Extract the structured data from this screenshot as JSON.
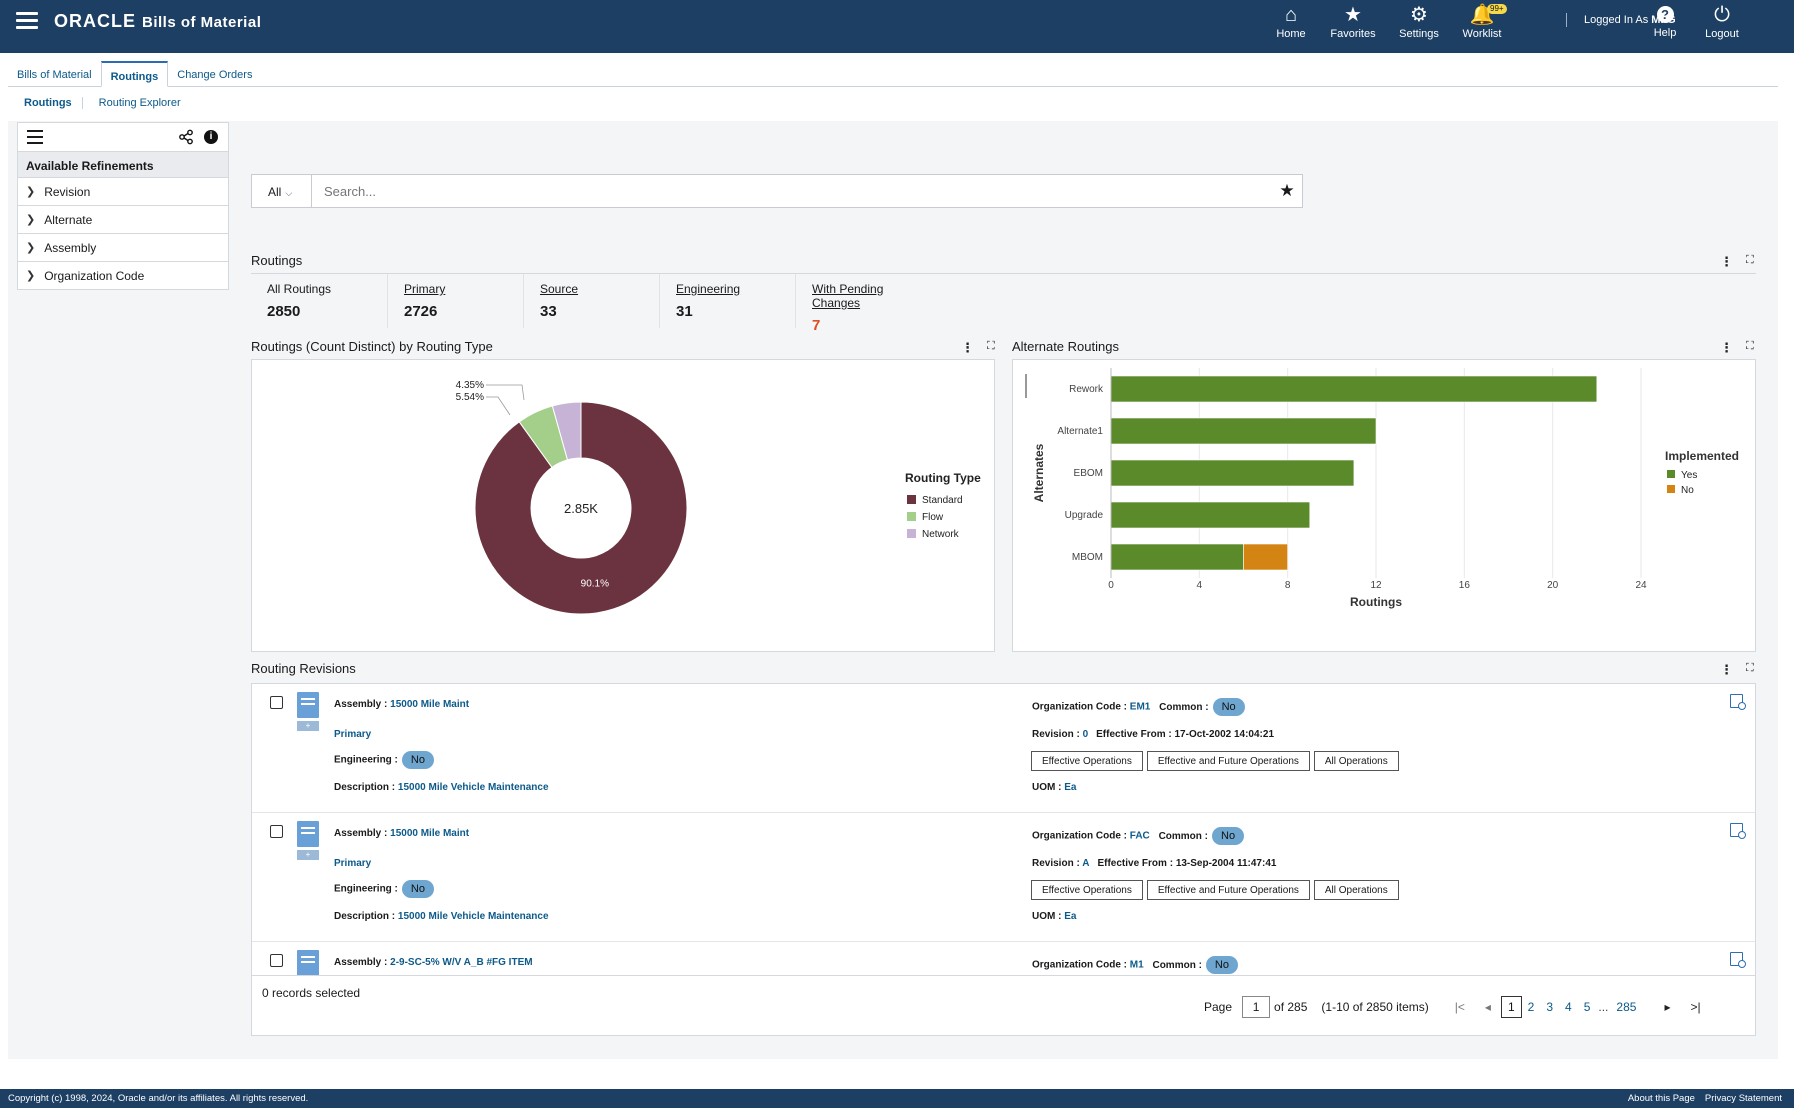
{
  "header": {
    "brand_oracle": "ORACLE",
    "brand_app": "Bills of Material",
    "nav": [
      {
        "label": "Home",
        "icon": "home-icon",
        "glyph": "⌂"
      },
      {
        "label": "Favorites",
        "icon": "star-icon",
        "glyph": "★"
      },
      {
        "label": "Settings",
        "icon": "gear-icon",
        "glyph": "⚙"
      },
      {
        "label": "Worklist",
        "icon": "bell-icon",
        "glyph": "🔔"
      },
      {
        "label": "Help",
        "icon": "help-icon",
        "glyph": "?"
      },
      {
        "label": "Logout",
        "icon": "power-icon",
        "glyph": "⏻"
      }
    ],
    "worklist_badge": "99+",
    "logged_in_prefix": "Logged In As",
    "logged_in_user": "MFG"
  },
  "tabs": [
    "Bills of Material",
    "Routings",
    "Change Orders"
  ],
  "subtabs": [
    "Routings",
    "Routing Explorer"
  ],
  "refinements": {
    "title": "Available Refinements",
    "items": [
      "Revision",
      "Alternate",
      "Assembly",
      "Organization Code"
    ]
  },
  "search": {
    "scope": "All",
    "placeholder": "Search..."
  },
  "routings_section": {
    "title": "Routings",
    "metrics": [
      {
        "label": "All Routings",
        "value": "2850"
      },
      {
        "label": "Primary",
        "value": "2726"
      },
      {
        "label": "Source",
        "value": "33"
      },
      {
        "label": "Engineering",
        "value": "31"
      },
      {
        "label": "With Pending Changes",
        "value": "7"
      }
    ]
  },
  "chart_data": [
    {
      "type": "pie",
      "title": "Routings (Count Distinct) by Routing Type",
      "center_label": "2.85K",
      "legend_title": "Routing Type",
      "legend_position": "right",
      "slices": [
        {
          "name": "Standard",
          "value": 90.1,
          "label": "90.1%",
          "color": "#6b3340"
        },
        {
          "name": "Flow",
          "value": 5.54,
          "label": "5.54%",
          "color": "#a3cf8a"
        },
        {
          "name": "Network",
          "value": 4.35,
          "label": "4.35%",
          "color": "#c7b3d6"
        }
      ]
    },
    {
      "type": "bar",
      "orientation": "horizontal",
      "stacked": true,
      "title": "Alternate Routings",
      "categories": [
        "Rework",
        "Alternate1",
        "EBOM",
        "Upgrade",
        "MBOM"
      ],
      "series": [
        {
          "name": "Yes",
          "color": "#5a8a2a",
          "values": [
            22,
            12,
            11,
            9,
            6
          ]
        },
        {
          "name": "No",
          "color": "#d48412",
          "values": [
            0,
            0,
            0,
            0,
            2
          ]
        }
      ],
      "xlabel": "Routings",
      "ylabel": "Alternates",
      "xlim": [
        0,
        24
      ],
      "xticks": [
        0,
        4,
        8,
        12,
        16,
        20,
        24
      ],
      "legend_title": "Implemented",
      "legend_position": "right",
      "grid": true
    }
  ],
  "revisions": {
    "title": "Routing Revisions",
    "labels": {
      "assembly": "Assembly :",
      "engineering": "Engineering :",
      "description": "Description :",
      "org": "Organization Code :",
      "common": "Common :",
      "revision": "Revision :",
      "effective_from": "Effective From :",
      "uom": "UOM :"
    },
    "buttons": [
      "Effective Operations",
      "Effective and Future Operations",
      "All Operations"
    ],
    "rows": [
      {
        "assembly": "15000 Mile Maint",
        "type": "Primary",
        "engineering": "No",
        "description": "15000 Mile Vehicle Maintenance",
        "org": "EM1",
        "common": "No",
        "revision": "0",
        "effective_from": "17-Oct-2002 14:04:21",
        "uom": "Ea"
      },
      {
        "assembly": "15000 Mile Maint",
        "type": "Primary",
        "engineering": "No",
        "description": "15000 Mile Vehicle Maintenance",
        "org": "FAC",
        "common": "No",
        "revision": "A",
        "effective_from": "13-Sep-2004 11:47:41",
        "uom": "Ea"
      },
      {
        "assembly": "2-9-SC-5% W/V A_B #FG ITEM",
        "type": "",
        "engineering": "",
        "description": "",
        "org": "M1",
        "common": "No",
        "revision": "",
        "effective_from": "",
        "uom": ""
      }
    ],
    "records_selected": "0 records selected",
    "pager": {
      "page_label": "Page",
      "page": "1",
      "of": "of 285",
      "range": "(1-10 of 2850 items)",
      "pages": [
        "1",
        "2",
        "3",
        "4",
        "5",
        "...",
        "285"
      ]
    }
  },
  "footer": {
    "copyright": "Copyright (c) 1998, 2024, Oracle and/or its affiliates. All rights reserved.",
    "links": [
      "About this Page",
      "Privacy Statement"
    ]
  }
}
